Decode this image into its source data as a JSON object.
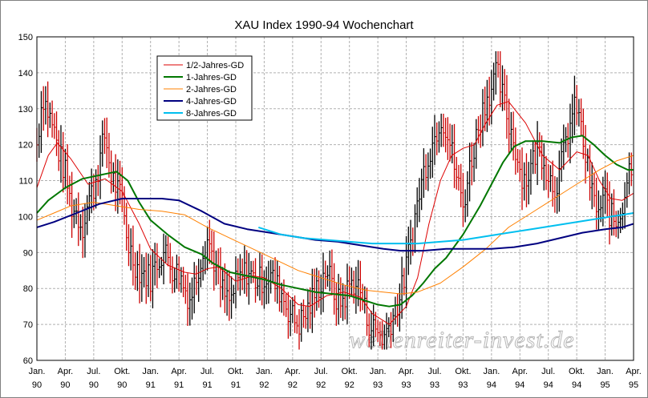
{
  "chart_data": {
    "type": "line",
    "title": "XAU Index 1990-94 Wochenchart",
    "watermark": "wellenreiter-invest.de",
    "ylim": [
      60,
      150
    ],
    "yticks": [
      60,
      70,
      80,
      90,
      100,
      110,
      120,
      130,
      140,
      150
    ],
    "xlim": [
      1990.0,
      1995.25
    ],
    "xticks": [
      {
        "x": 1990.0,
        "m": "Jan.",
        "y": "90"
      },
      {
        "x": 1990.25,
        "m": "Apr.",
        "y": "90"
      },
      {
        "x": 1990.5,
        "m": "Jul.",
        "y": "90"
      },
      {
        "x": 1990.75,
        "m": "Okt.",
        "y": "90"
      },
      {
        "x": 1991.0,
        "m": "Jan.",
        "y": "91"
      },
      {
        "x": 1991.25,
        "m": "Apr.",
        "y": "91"
      },
      {
        "x": 1991.5,
        "m": "Jul.",
        "y": "91"
      },
      {
        "x": 1991.75,
        "m": "Okt.",
        "y": "91"
      },
      {
        "x": 1992.0,
        "m": "Jan.",
        "y": "92"
      },
      {
        "x": 1992.25,
        "m": "Apr.",
        "y": "92"
      },
      {
        "x": 1992.5,
        "m": "Jul.",
        "y": "92"
      },
      {
        "x": 1992.75,
        "m": "Okt.",
        "y": "92"
      },
      {
        "x": 1993.0,
        "m": "Jan.",
        "y": "93"
      },
      {
        "x": 1993.25,
        "m": "Apr.",
        "y": "93"
      },
      {
        "x": 1993.5,
        "m": "Jul.",
        "y": "93"
      },
      {
        "x": 1993.75,
        "m": "Okt.",
        "y": "93"
      },
      {
        "x": 1994.0,
        "m": "Jan.",
        "y": "94"
      },
      {
        "x": 1994.25,
        "m": "Apr.",
        "y": "94"
      },
      {
        "x": 1994.5,
        "m": "Jul.",
        "y": "94"
      },
      {
        "x": 1994.75,
        "m": "Okt.",
        "y": "94"
      },
      {
        "x": 1995.0,
        "m": "Jan.",
        "y": "95"
      },
      {
        "x": 1995.25,
        "m": "Apr.",
        "y": "95"
      }
    ],
    "grid": true,
    "legend_position": "top-left",
    "price_bars": {
      "up_color": "#000000",
      "down_color": "#cc0000",
      "points": [
        [
          1990.0,
          120
        ],
        [
          1990.05,
          134
        ],
        [
          1990.1,
          129
        ],
        [
          1990.15,
          124
        ],
        [
          1990.2,
          117
        ],
        [
          1990.25,
          112
        ],
        [
          1990.3,
          103
        ],
        [
          1990.35,
          101
        ],
        [
          1990.4,
          97
        ],
        [
          1990.45,
          104
        ],
        [
          1990.5,
          108
        ],
        [
          1990.55,
          115
        ],
        [
          1990.6,
          123
        ],
        [
          1990.65,
          112
        ],
        [
          1990.7,
          108
        ],
        [
          1990.75,
          104
        ],
        [
          1990.8,
          93
        ],
        [
          1990.85,
          88
        ],
        [
          1990.9,
          85
        ],
        [
          1990.95,
          84
        ],
        [
          1991.0,
          83
        ],
        [
          1991.05,
          87
        ],
        [
          1991.1,
          90
        ],
        [
          1991.15,
          89
        ],
        [
          1991.2,
          85
        ],
        [
          1991.25,
          84
        ],
        [
          1991.3,
          80
        ],
        [
          1991.35,
          77
        ],
        [
          1991.4,
          83
        ],
        [
          1991.45,
          90
        ],
        [
          1991.5,
          94
        ],
        [
          1991.55,
          89
        ],
        [
          1991.6,
          82
        ],
        [
          1991.65,
          78
        ],
        [
          1991.7,
          76
        ],
        [
          1991.75,
          81
        ],
        [
          1991.8,
          83
        ],
        [
          1991.85,
          85
        ],
        [
          1991.9,
          83
        ],
        [
          1991.95,
          82
        ],
        [
          1992.0,
          83
        ],
        [
          1992.05,
          84
        ],
        [
          1992.1,
          81
        ],
        [
          1992.15,
          79
        ],
        [
          1992.2,
          75
        ],
        [
          1992.25,
          72
        ],
        [
          1992.3,
          70
        ],
        [
          1992.35,
          72
        ],
        [
          1992.4,
          75
        ],
        [
          1992.45,
          79
        ],
        [
          1992.5,
          82
        ],
        [
          1992.55,
          86
        ],
        [
          1992.6,
          80
        ],
        [
          1992.65,
          76
        ],
        [
          1992.7,
          77
        ],
        [
          1992.75,
          81
        ],
        [
          1992.8,
          82
        ],
        [
          1992.85,
          79
        ],
        [
          1992.9,
          72
        ],
        [
          1992.95,
          69
        ],
        [
          1993.0,
          68
        ],
        [
          1993.05,
          66
        ],
        [
          1993.1,
          70
        ],
        [
          1993.15,
          74
        ],
        [
          1993.2,
          78
        ],
        [
          1993.25,
          86
        ],
        [
          1993.3,
          95
        ],
        [
          1993.35,
          104
        ],
        [
          1993.4,
          112
        ],
        [
          1993.45,
          118
        ],
        [
          1993.5,
          122
        ],
        [
          1993.55,
          128
        ],
        [
          1993.6,
          125
        ],
        [
          1993.65,
          118
        ],
        [
          1993.7,
          110
        ],
        [
          1993.75,
          103
        ],
        [
          1993.8,
          112
        ],
        [
          1993.85,
          120
        ],
        [
          1993.9,
          127
        ],
        [
          1993.95,
          133
        ],
        [
          1994.0,
          136
        ],
        [
          1994.05,
          140
        ],
        [
          1994.1,
          133
        ],
        [
          1994.15,
          126
        ],
        [
          1994.2,
          121
        ],
        [
          1994.25,
          113
        ],
        [
          1994.3,
          110
        ],
        [
          1994.35,
          114
        ],
        [
          1994.4,
          119
        ],
        [
          1994.45,
          117
        ],
        [
          1994.5,
          112
        ],
        [
          1994.55,
          108
        ],
        [
          1994.6,
          112
        ],
        [
          1994.65,
          120
        ],
        [
          1994.7,
          127
        ],
        [
          1994.75,
          131
        ],
        [
          1994.8,
          122
        ],
        [
          1994.85,
          112
        ],
        [
          1994.9,
          104
        ],
        [
          1994.95,
          101
        ],
        [
          1995.0,
          105
        ],
        [
          1995.05,
          100
        ],
        [
          1995.1,
          98
        ],
        [
          1995.15,
          103
        ],
        [
          1995.2,
          112
        ],
        [
          1995.25,
          117
        ]
      ]
    },
    "series": [
      {
        "name": "1/2-Jahres-GD",
        "color": "#dd0000",
        "width": 1,
        "points": [
          [
            1990.0,
            108
          ],
          [
            1990.1,
            117
          ],
          [
            1990.18,
            120.5
          ],
          [
            1990.3,
            116
          ],
          [
            1990.45,
            109
          ],
          [
            1990.6,
            110.5
          ],
          [
            1990.75,
            107
          ],
          [
            1990.9,
            98
          ],
          [
            1991.0,
            91
          ],
          [
            1991.15,
            86.5
          ],
          [
            1991.3,
            84.5
          ],
          [
            1991.4,
            84
          ],
          [
            1991.5,
            85.5
          ],
          [
            1991.6,
            86
          ],
          [
            1991.75,
            82
          ],
          [
            1991.9,
            83.5
          ],
          [
            1992.0,
            83
          ],
          [
            1992.15,
            80
          ],
          [
            1992.3,
            75.5
          ],
          [
            1992.4,
            75
          ],
          [
            1992.55,
            78
          ],
          [
            1992.7,
            79
          ],
          [
            1992.85,
            77.5
          ],
          [
            1992.95,
            73
          ],
          [
            1993.1,
            70
          ],
          [
            1993.25,
            75
          ],
          [
            1993.35,
            83
          ],
          [
            1993.45,
            98
          ],
          [
            1993.55,
            110
          ],
          [
            1993.65,
            117
          ],
          [
            1993.75,
            119
          ],
          [
            1993.85,
            120
          ],
          [
            1993.95,
            126
          ],
          [
            1994.05,
            131
          ],
          [
            1994.15,
            132
          ],
          [
            1994.3,
            126
          ],
          [
            1994.45,
            117
          ],
          [
            1994.6,
            113
          ],
          [
            1994.75,
            118
          ],
          [
            1994.85,
            117
          ],
          [
            1994.95,
            110
          ],
          [
            1995.05,
            105
          ],
          [
            1995.15,
            104.5
          ],
          [
            1995.25,
            106.5
          ]
        ]
      },
      {
        "name": "1-Jahres-GD",
        "color": "#007700",
        "width": 2,
        "points": [
          [
            1990.0,
            101
          ],
          [
            1990.1,
            104.5
          ],
          [
            1990.25,
            108
          ],
          [
            1990.4,
            110.5
          ],
          [
            1990.55,
            111.5
          ],
          [
            1990.7,
            112.5
          ],
          [
            1990.8,
            110
          ],
          [
            1990.9,
            104
          ],
          [
            1991.0,
            99
          ],
          [
            1991.15,
            95
          ],
          [
            1991.3,
            91.5
          ],
          [
            1991.45,
            89.5
          ],
          [
            1991.55,
            87
          ],
          [
            1991.7,
            84.5
          ],
          [
            1991.85,
            83.5
          ],
          [
            1992.0,
            82.5
          ],
          [
            1992.15,
            81
          ],
          [
            1992.3,
            80
          ],
          [
            1992.45,
            79
          ],
          [
            1992.6,
            78.5
          ],
          [
            1992.75,
            78
          ],
          [
            1992.9,
            76.5
          ],
          [
            1993.0,
            75.5
          ],
          [
            1993.1,
            75
          ],
          [
            1993.2,
            75.5
          ],
          [
            1993.3,
            78
          ],
          [
            1993.4,
            81.5
          ],
          [
            1993.5,
            85.5
          ],
          [
            1993.6,
            88.5
          ],
          [
            1993.75,
            95
          ],
          [
            1993.9,
            103
          ],
          [
            1994.0,
            109
          ],
          [
            1994.1,
            115
          ],
          [
            1994.2,
            119.5
          ],
          [
            1994.3,
            121
          ],
          [
            1994.45,
            121
          ],
          [
            1994.6,
            120.5
          ],
          [
            1994.7,
            122
          ],
          [
            1994.8,
            122.5
          ],
          [
            1994.9,
            120
          ],
          [
            1995.0,
            117
          ],
          [
            1995.1,
            114.5
          ],
          [
            1995.2,
            113
          ],
          [
            1995.25,
            113
          ]
        ]
      },
      {
        "name": "2-Jahres-GD",
        "color": "#ff8000",
        "width": 1,
        "points": [
          [
            1990.0,
            99
          ],
          [
            1990.15,
            101
          ],
          [
            1990.3,
            103
          ],
          [
            1990.5,
            104
          ],
          [
            1990.7,
            103
          ],
          [
            1990.9,
            102
          ],
          [
            1991.1,
            101.5
          ],
          [
            1991.3,
            100.5
          ],
          [
            1991.5,
            97
          ],
          [
            1991.7,
            94
          ],
          [
            1991.9,
            91
          ],
          [
            1992.1,
            88
          ],
          [
            1992.3,
            85
          ],
          [
            1992.5,
            83
          ],
          [
            1992.7,
            81
          ],
          [
            1992.9,
            79.5
          ],
          [
            1993.05,
            79
          ],
          [
            1993.2,
            78.5
          ],
          [
            1993.35,
            79
          ],
          [
            1993.55,
            81.5
          ],
          [
            1993.75,
            86
          ],
          [
            1993.95,
            91
          ],
          [
            1994.15,
            97
          ],
          [
            1994.35,
            101
          ],
          [
            1994.55,
            105
          ],
          [
            1994.75,
            109
          ],
          [
            1994.95,
            113
          ],
          [
            1995.1,
            115.5
          ],
          [
            1995.25,
            117
          ]
        ]
      },
      {
        "name": "4-Jahres-GD",
        "color": "#000080",
        "width": 2,
        "points": [
          [
            1990.0,
            97
          ],
          [
            1990.15,
            98.5
          ],
          [
            1990.35,
            101
          ],
          [
            1990.55,
            103.5
          ],
          [
            1990.75,
            105
          ],
          [
            1990.95,
            105
          ],
          [
            1991.1,
            105
          ],
          [
            1991.25,
            104.5
          ],
          [
            1991.45,
            101.5
          ],
          [
            1991.65,
            98
          ],
          [
            1991.85,
            96.5
          ],
          [
            1992.05,
            95.5
          ],
          [
            1992.25,
            94.5
          ],
          [
            1992.45,
            93.5
          ],
          [
            1992.65,
            93
          ],
          [
            1992.85,
            92
          ],
          [
            1993.05,
            91
          ],
          [
            1993.2,
            90.5
          ],
          [
            1993.4,
            90.5
          ],
          [
            1993.6,
            91
          ],
          [
            1993.8,
            91
          ],
          [
            1994.0,
            91
          ],
          [
            1994.2,
            91.5
          ],
          [
            1994.4,
            92.5
          ],
          [
            1994.6,
            94
          ],
          [
            1994.8,
            95.5
          ],
          [
            1995.0,
            96.5
          ],
          [
            1995.15,
            97
          ],
          [
            1995.25,
            98
          ]
        ]
      },
      {
        "name": "8-Jahres-GD",
        "color": "#00bfef",
        "width": 2,
        "points": [
          [
            1991.95,
            97
          ],
          [
            1992.15,
            95
          ],
          [
            1992.35,
            94
          ],
          [
            1992.55,
            93.5
          ],
          [
            1992.75,
            93
          ],
          [
            1992.95,
            92.5
          ],
          [
            1993.15,
            92.5
          ],
          [
            1993.35,
            92.5
          ],
          [
            1993.55,
            93
          ],
          [
            1993.75,
            93.5
          ],
          [
            1993.95,
            94.5
          ],
          [
            1994.15,
            95.5
          ],
          [
            1994.35,
            96.5
          ],
          [
            1994.55,
            97.5
          ],
          [
            1994.75,
            98.5
          ],
          [
            1994.95,
            99.5
          ],
          [
            1995.15,
            100.5
          ],
          [
            1995.25,
            101
          ]
        ]
      }
    ]
  }
}
